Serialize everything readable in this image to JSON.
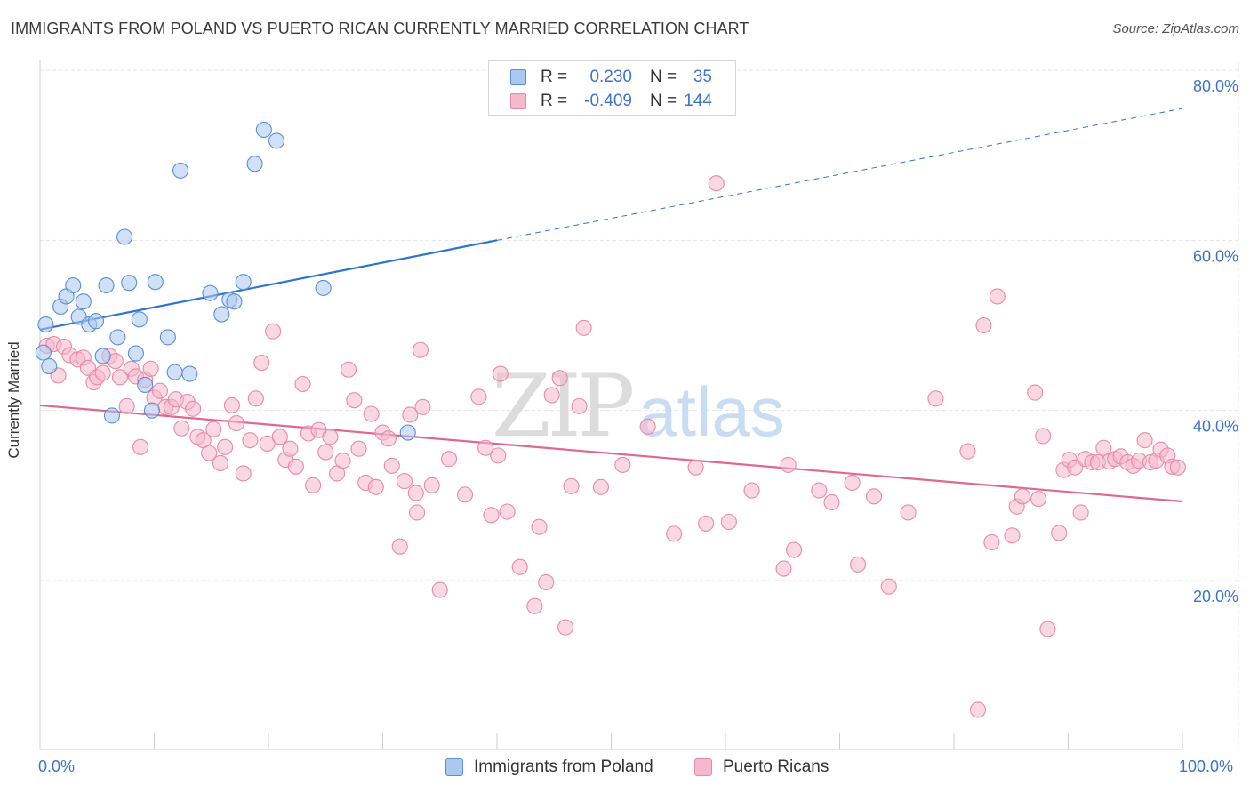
{
  "title": "IMMIGRANTS FROM POLAND VS PUERTO RICAN CURRENTLY MARRIED CORRELATION CHART",
  "source": "Source: ZipAtlas.com",
  "watermark": {
    "zip": "ZIP",
    "atlas": "atlas"
  },
  "colors": {
    "blue_fill": "#a9c9f0",
    "blue_stroke": "#5b8fd4",
    "blue_line": "#2f74d0",
    "pink_fill": "#f6b8cb",
    "pink_stroke": "#e68aa8",
    "pink_line": "#e0678f",
    "axis_text": "#3d74c9",
    "grid": "#e3e3e3"
  },
  "legend_top": [
    {
      "r_label": "R =",
      "r_value": "0.230",
      "n_label": "N =",
      "n_value": "35"
    },
    {
      "r_label": "R =",
      "r_value": "-0.409",
      "n_label": "N =",
      "n_value": "144"
    }
  ],
  "legend_bottom": [
    "Immigrants from Poland",
    "Puerto Ricans"
  ],
  "chart_data": {
    "type": "scatter",
    "title": "IMMIGRANTS FROM POLAND VS PUERTO RICAN CURRENTLY MARRIED CORRELATION CHART",
    "xlabel": "",
    "ylabel": "Currently Married",
    "x_tick_labels": [
      "0.0%",
      "100.0%"
    ],
    "y_tick_labels": [
      "20.0%",
      "40.0%",
      "60.0%",
      "80.0%"
    ],
    "xlim": [
      0,
      100
    ],
    "ylim": [
      0,
      82
    ],
    "grid": true,
    "legend_position": "top-center",
    "series": [
      {
        "name": "Immigrants from Poland",
        "r": 0.23,
        "n": 35,
        "trend": {
          "x": [
            0,
            40
          ],
          "y": [
            49.5,
            60.0
          ],
          "dashed_to": [
            100,
            75.5
          ]
        },
        "points": [
          [
            0.3,
            46.8
          ],
          [
            0.8,
            45.2
          ],
          [
            0.5,
            50.1
          ],
          [
            1.8,
            52.2
          ],
          [
            2.3,
            53.4
          ],
          [
            2.9,
            54.7
          ],
          [
            3.4,
            51.0
          ],
          [
            3.8,
            52.8
          ],
          [
            4.3,
            50.1
          ],
          [
            4.9,
            50.5
          ],
          [
            5.5,
            46.4
          ],
          [
            5.8,
            54.7
          ],
          [
            6.3,
            39.4
          ],
          [
            6.8,
            48.6
          ],
          [
            7.4,
            60.4
          ],
          [
            7.8,
            55.0
          ],
          [
            8.4,
            46.7
          ],
          [
            8.7,
            50.7
          ],
          [
            9.2,
            43.0
          ],
          [
            9.8,
            40.0
          ],
          [
            10.1,
            55.1
          ],
          [
            11.2,
            48.6
          ],
          [
            11.8,
            44.5
          ],
          [
            12.3,
            68.2
          ],
          [
            13.1,
            44.3
          ],
          [
            14.9,
            53.8
          ],
          [
            15.9,
            51.3
          ],
          [
            16.6,
            53.0
          ],
          [
            17.0,
            52.8
          ],
          [
            17.8,
            55.1
          ],
          [
            18.8,
            69.0
          ],
          [
            19.6,
            73.0
          ],
          [
            20.7,
            71.7
          ],
          [
            24.8,
            54.4
          ],
          [
            32.2,
            37.4
          ]
        ]
      },
      {
        "name": "Puerto Ricans",
        "r": -0.409,
        "n": 144,
        "trend": {
          "x": [
            0,
            100
          ],
          "y": [
            40.6,
            29.3
          ]
        },
        "points": [
          [
            0.6,
            47.6
          ],
          [
            1.2,
            47.8
          ],
          [
            1.6,
            44.1
          ],
          [
            2.1,
            47.5
          ],
          [
            2.6,
            46.5
          ],
          [
            3.3,
            46.0
          ],
          [
            3.8,
            46.2
          ],
          [
            4.2,
            45.0
          ],
          [
            4.7,
            43.3
          ],
          [
            5.0,
            43.9
          ],
          [
            5.5,
            44.4
          ],
          [
            6.1,
            46.4
          ],
          [
            6.6,
            45.8
          ],
          [
            7.0,
            43.9
          ],
          [
            7.6,
            40.5
          ],
          [
            8.0,
            44.9
          ],
          [
            8.4,
            44.0
          ],
          [
            8.8,
            35.7
          ],
          [
            9.2,
            43.6
          ],
          [
            9.7,
            44.9
          ],
          [
            10.0,
            41.5
          ],
          [
            10.5,
            42.3
          ],
          [
            11.0,
            40.4
          ],
          [
            11.5,
            40.4
          ],
          [
            11.9,
            41.3
          ],
          [
            12.4,
            37.9
          ],
          [
            12.9,
            41.0
          ],
          [
            13.4,
            40.2
          ],
          [
            13.8,
            36.9
          ],
          [
            14.3,
            36.5
          ],
          [
            14.8,
            35.0
          ],
          [
            15.2,
            37.8
          ],
          [
            15.8,
            33.8
          ],
          [
            16.2,
            35.7
          ],
          [
            16.8,
            40.6
          ],
          [
            17.2,
            38.5
          ],
          [
            17.8,
            32.6
          ],
          [
            18.4,
            36.5
          ],
          [
            18.9,
            41.4
          ],
          [
            19.4,
            45.6
          ],
          [
            19.9,
            36.1
          ],
          [
            20.4,
            49.3
          ],
          [
            21.0,
            36.9
          ],
          [
            21.5,
            34.2
          ],
          [
            21.9,
            35.5
          ],
          [
            22.4,
            33.4
          ],
          [
            23.0,
            43.1
          ],
          [
            23.5,
            37.3
          ],
          [
            23.9,
            31.2
          ],
          [
            24.4,
            37.7
          ],
          [
            25.0,
            35.1
          ],
          [
            25.4,
            36.9
          ],
          [
            26.0,
            32.6
          ],
          [
            26.5,
            34.1
          ],
          [
            27.0,
            44.8
          ],
          [
            27.5,
            41.2
          ],
          [
            27.9,
            35.5
          ],
          [
            28.5,
            31.5
          ],
          [
            29.0,
            39.6
          ],
          [
            29.4,
            31.0
          ],
          [
            30.0,
            37.4
          ],
          [
            30.5,
            36.7
          ],
          [
            30.8,
            33.5
          ],
          [
            31.5,
            24.0
          ],
          [
            31.9,
            31.7
          ],
          [
            32.4,
            39.5
          ],
          [
            32.9,
            30.3
          ],
          [
            33.0,
            28.0
          ],
          [
            33.3,
            47.1
          ],
          [
            33.5,
            40.4
          ],
          [
            34.3,
            31.2
          ],
          [
            35.0,
            18.9
          ],
          [
            35.8,
            34.3
          ],
          [
            37.2,
            30.1
          ],
          [
            38.4,
            41.6
          ],
          [
            39.0,
            35.6
          ],
          [
            39.5,
            27.7
          ],
          [
            40.1,
            34.7
          ],
          [
            40.3,
            44.3
          ],
          [
            40.9,
            28.1
          ],
          [
            42.0,
            21.6
          ],
          [
            43.3,
            17.0
          ],
          [
            43.7,
            26.3
          ],
          [
            44.3,
            19.8
          ],
          [
            44.8,
            41.8
          ],
          [
            45.5,
            43.8
          ],
          [
            46.0,
            14.5
          ],
          [
            46.5,
            31.1
          ],
          [
            47.2,
            40.5
          ],
          [
            47.6,
            49.7
          ],
          [
            49.1,
            31.0
          ],
          [
            51.0,
            33.6
          ],
          [
            53.2,
            38.1
          ],
          [
            55.5,
            25.5
          ],
          [
            57.4,
            33.3
          ],
          [
            58.3,
            26.7
          ],
          [
            59.2,
            66.7
          ],
          [
            60.3,
            26.9
          ],
          [
            62.3,
            30.6
          ],
          [
            65.1,
            21.4
          ],
          [
            65.5,
            33.6
          ],
          [
            66.0,
            23.6
          ],
          [
            68.2,
            30.6
          ],
          [
            69.3,
            29.2
          ],
          [
            71.1,
            31.5
          ],
          [
            71.6,
            21.9
          ],
          [
            73.0,
            29.9
          ],
          [
            74.3,
            19.3
          ],
          [
            76.0,
            28.0
          ],
          [
            78.4,
            41.4
          ],
          [
            81.2,
            35.2
          ],
          [
            82.1,
            4.8
          ],
          [
            82.6,
            50.0
          ],
          [
            83.3,
            24.5
          ],
          [
            83.8,
            53.4
          ],
          [
            85.1,
            25.3
          ],
          [
            85.5,
            28.7
          ],
          [
            86.0,
            29.9
          ],
          [
            87.1,
            42.1
          ],
          [
            87.4,
            29.6
          ],
          [
            87.8,
            37.0
          ],
          [
            88.2,
            14.3
          ],
          [
            89.2,
            25.6
          ],
          [
            89.6,
            33.0
          ],
          [
            90.1,
            34.2
          ],
          [
            90.6,
            33.3
          ],
          [
            91.1,
            28.0
          ],
          [
            91.5,
            34.3
          ],
          [
            92.1,
            33.9
          ],
          [
            92.6,
            33.9
          ],
          [
            93.1,
            35.6
          ],
          [
            93.6,
            34.0
          ],
          [
            94.1,
            34.3
          ],
          [
            94.6,
            34.6
          ],
          [
            95.2,
            33.9
          ],
          [
            95.7,
            33.5
          ],
          [
            96.2,
            34.1
          ],
          [
            96.7,
            36.5
          ],
          [
            97.2,
            33.9
          ],
          [
            97.7,
            34.1
          ],
          [
            98.1,
            35.4
          ],
          [
            98.7,
            34.7
          ],
          [
            99.1,
            33.4
          ],
          [
            99.6,
            33.3
          ]
        ]
      }
    ]
  }
}
